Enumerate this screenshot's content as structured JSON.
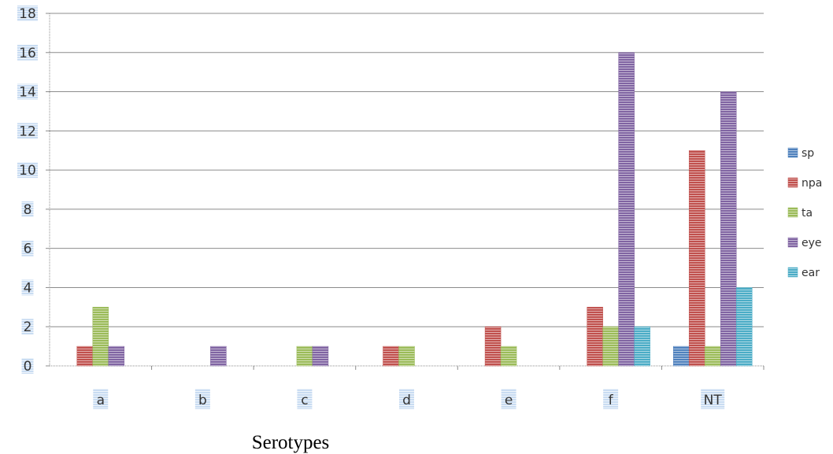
{
  "chart_data": {
    "type": "bar",
    "title": "",
    "xlabel": "Serotypes",
    "ylabel": "",
    "ylim": [
      0,
      18
    ],
    "yticks": [
      0,
      2,
      4,
      6,
      8,
      10,
      12,
      14,
      16,
      18
    ],
    "grid": true,
    "legend_position": "right",
    "categories": [
      "a",
      "b",
      "c",
      "d",
      "e",
      "f",
      "NT"
    ],
    "series": [
      {
        "name": "sp",
        "color": "#4f81bd",
        "values": [
          0,
          0,
          0,
          0,
          0,
          0,
          1
        ]
      },
      {
        "name": "npa",
        "color": "#c0504d",
        "values": [
          1,
          0,
          0,
          1,
          2,
          3,
          11
        ]
      },
      {
        "name": "ta",
        "color": "#9bbb59",
        "values": [
          3,
          0,
          1,
          1,
          1,
          2,
          1
        ]
      },
      {
        "name": "eye",
        "color": "#8064a2",
        "values": [
          1,
          1,
          1,
          0,
          0,
          16,
          14
        ]
      },
      {
        "name": "ear",
        "color": "#4bacc6",
        "values": [
          0,
          0,
          0,
          0,
          0,
          2,
          4
        ]
      }
    ]
  }
}
